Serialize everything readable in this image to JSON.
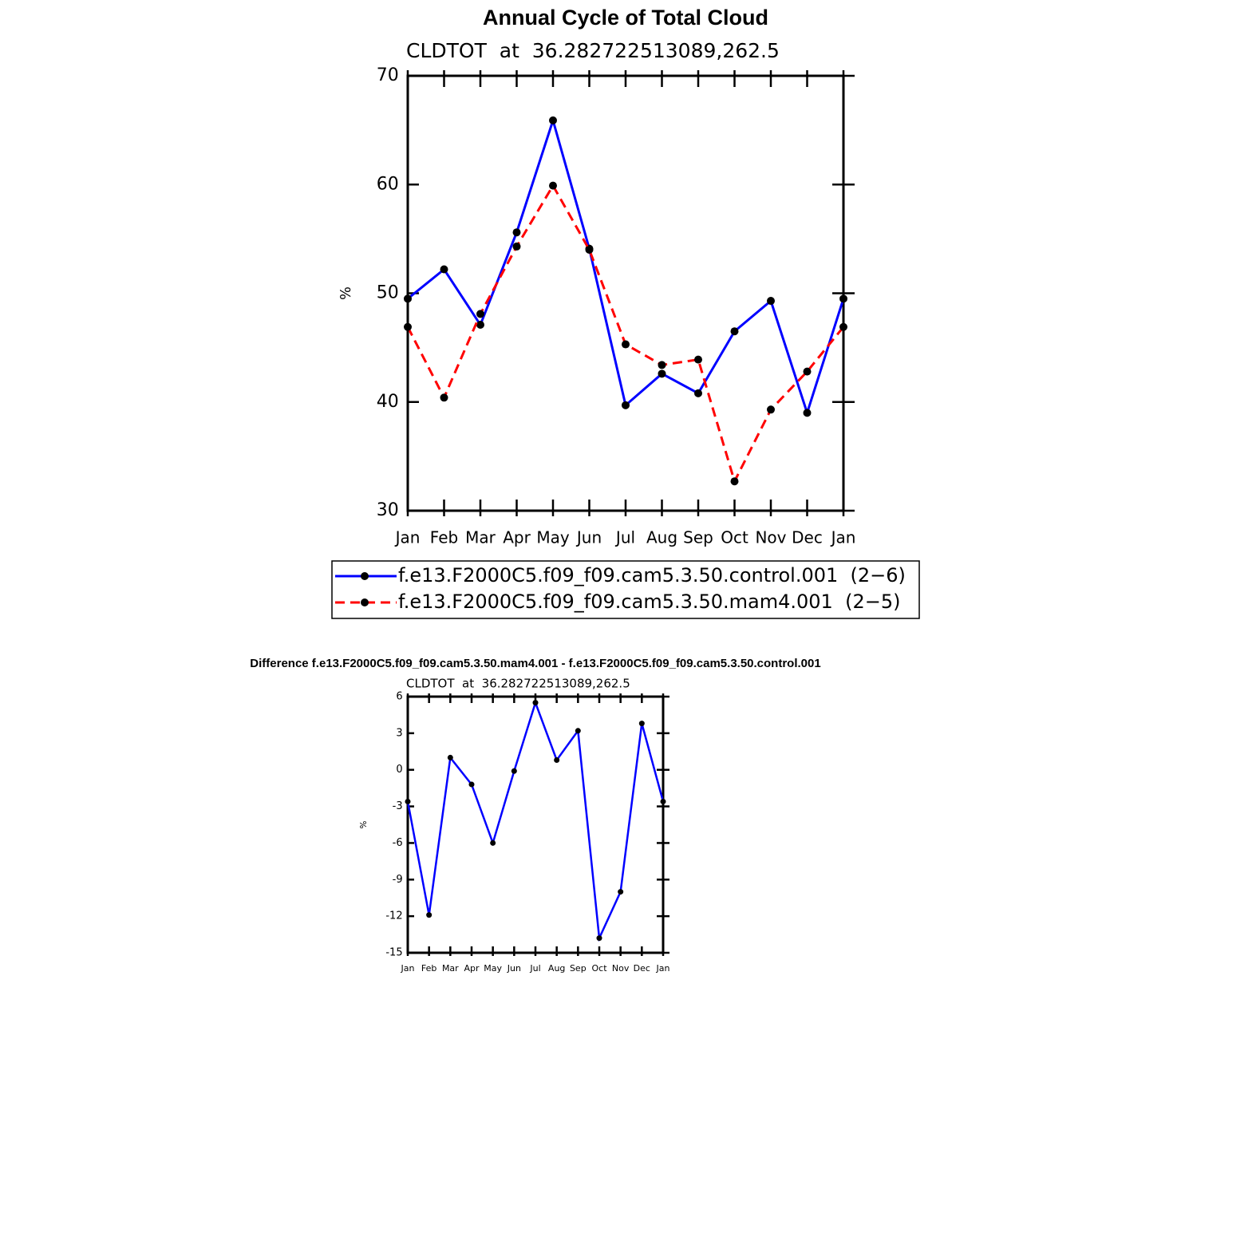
{
  "chart_data": [
    {
      "type": "line",
      "title": "Annual Cycle of Total Cloud",
      "subtitle": "CLDTOT  at  36.282722513089,262.5",
      "ylabel": "%",
      "categories": [
        "Jan",
        "Feb",
        "Mar",
        "Apr",
        "May",
        "Jun",
        "Jul",
        "Aug",
        "Sep",
        "Oct",
        "Nov",
        "Dec",
        "Jan"
      ],
      "series": [
        {
          "name": "f.e13.F2000C5.f09_f09.cam5.3.50.control.001  (2−6)",
          "color": "#0000ff",
          "linestyle": "solid",
          "values": [
            49.5,
            52.2,
            47.1,
            55.6,
            65.9,
            54.1,
            39.7,
            42.6,
            40.8,
            46.5,
            49.3,
            39.0,
            49.5
          ]
        },
        {
          "name": "f.e13.F2000C5.f09_f09.cam5.3.50.mam4.001  (2−5)",
          "color": "#ff0000",
          "linestyle": "dashed",
          "values": [
            46.9,
            40.4,
            48.1,
            54.3,
            59.9,
            54.0,
            45.3,
            43.4,
            43.9,
            32.7,
            39.3,
            42.8,
            46.9
          ]
        }
      ],
      "ylim": [
        30,
        70
      ],
      "yticks": [
        30,
        40,
        50,
        60,
        70
      ],
      "legend": "bottom"
    },
    {
      "type": "line",
      "title": "Difference f.e13.F2000C5.f09_f09.cam5.3.50.mam4.001 - f.e13.F2000C5.f09_f09.cam5.3.50.control.001",
      "subtitle": "CLDTOT  at  36.282722513089,262.5",
      "ylabel": "%",
      "categories": [
        "Jan",
        "Feb",
        "Mar",
        "Apr",
        "May",
        "Jun",
        "Jul",
        "Aug",
        "Sep",
        "Oct",
        "Nov",
        "Dec",
        "Jan"
      ],
      "color": "#0000ff",
      "values": [
        -2.6,
        -11.9,
        1.0,
        -1.2,
        -6.0,
        -0.1,
        5.5,
        0.8,
        3.2,
        -13.8,
        -10.0,
        3.8,
        -2.6
      ],
      "ylim": [
        -15,
        6
      ],
      "yticks": [
        -15,
        -12,
        -9,
        -6,
        -3,
        0,
        3,
        6
      ]
    }
  ]
}
